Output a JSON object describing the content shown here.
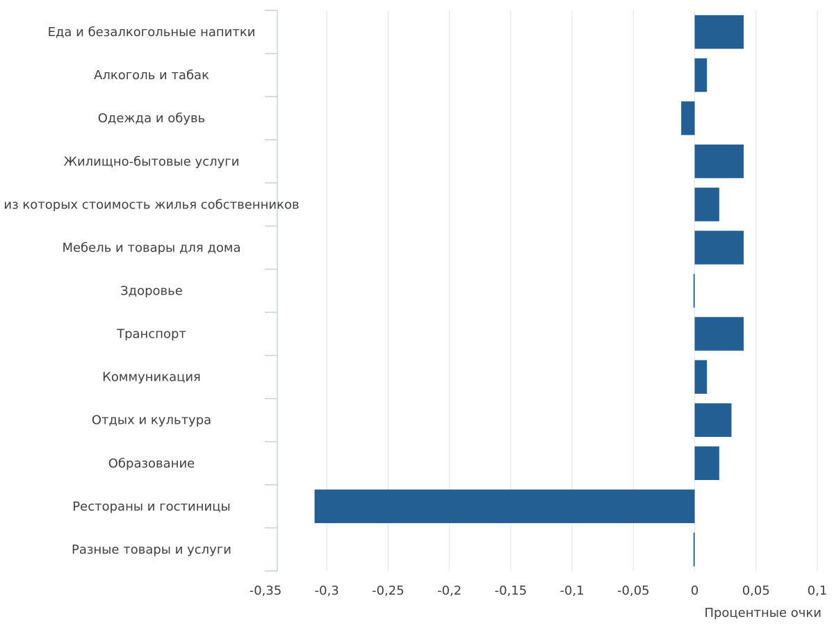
{
  "chart_data": {
    "type": "bar",
    "orientation": "horizontal",
    "categories": [
      "Еда и безалкогольные напитки",
      "Алкоголь и табак",
      "Одежда и обувь",
      "Жилищно-бытовые услуги",
      "из которых стоимость жилья собственников",
      "Мебель и товары для дома",
      "Здоровье",
      "Транспорт",
      "Коммуникация",
      "Отдых и культура",
      "Образование",
      "Рестораны и гостиницы",
      "Разные товары и услуги"
    ],
    "values": [
      0.04,
      0.01,
      -0.011,
      0.04,
      0.02,
      0.04,
      -0.001,
      0.04,
      0.01,
      0.03,
      0.02,
      -0.31,
      -0.001
    ],
    "xlabel": "Процентные очки",
    "ylabel": "",
    "xlim": [
      -0.35,
      0.1
    ],
    "xticks": [
      -0.35,
      -0.3,
      -0.25,
      -0.2,
      -0.15,
      -0.1,
      -0.05,
      0,
      0.05,
      0.1
    ],
    "xtick_labels": [
      "-0,35",
      "-0,3",
      "-0,25",
      "-0,2",
      "-0,15",
      "-0,1",
      "-0,05",
      "0",
      "0,05",
      "0,1"
    ],
    "grid": "vertical",
    "bar_color": "#245f94",
    "grid_color": "#e3e3e3",
    "axis_color": "#c9cfdc"
  }
}
